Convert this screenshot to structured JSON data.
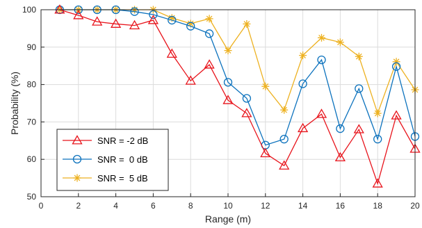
{
  "chart_data": {
    "type": "line",
    "xlabel": "Range (m)",
    "ylabel": "Probability (%)",
    "xlim": [
      0,
      20
    ],
    "ylim": [
      50,
      100
    ],
    "x_ticks": [
      0,
      2,
      4,
      6,
      8,
      10,
      12,
      14,
      16,
      18,
      20
    ],
    "y_ticks": [
      50,
      60,
      70,
      80,
      90,
      100
    ],
    "grid": true,
    "legend_position": "bottom-left",
    "x": [
      1,
      2,
      3,
      4,
      5,
      6,
      7,
      8,
      9,
      10,
      11,
      12,
      13,
      14,
      15,
      16,
      17,
      18,
      19,
      20
    ],
    "series": [
      {
        "name": "SNR = -2 dB",
        "color": "#e8141c",
        "marker": "triangle",
        "values": [
          100,
          98.5,
          96.8,
          96.2,
          95.8,
          97.2,
          88.2,
          81.0,
          85.3,
          75.8,
          72.3,
          61.6,
          58.3,
          68.3,
          72.1,
          60.5,
          68.0,
          53.5,
          71.7,
          62.8
        ]
      },
      {
        "name": "SNR =  0 dB",
        "color": "#0c72bd",
        "marker": "circle",
        "values": [
          100,
          100,
          100,
          100,
          99.5,
          98.7,
          97.2,
          95.6,
          93.6,
          80.6,
          76.3,
          63.8,
          65.4,
          80.2,
          86.6,
          68.2,
          78.9,
          65.4,
          84.8,
          66.1
        ]
      },
      {
        "name": "SNR =  5 dB",
        "color": "#edb120",
        "marker": "asterisk",
        "values": [
          100,
          100,
          100,
          100,
          100,
          100,
          97.8,
          96.3,
          97.6,
          89.1,
          96.2,
          79.5,
          73.2,
          87.8,
          92.5,
          91.3,
          87.5,
          72.3,
          86.1,
          78.6
        ]
      }
    ]
  }
}
